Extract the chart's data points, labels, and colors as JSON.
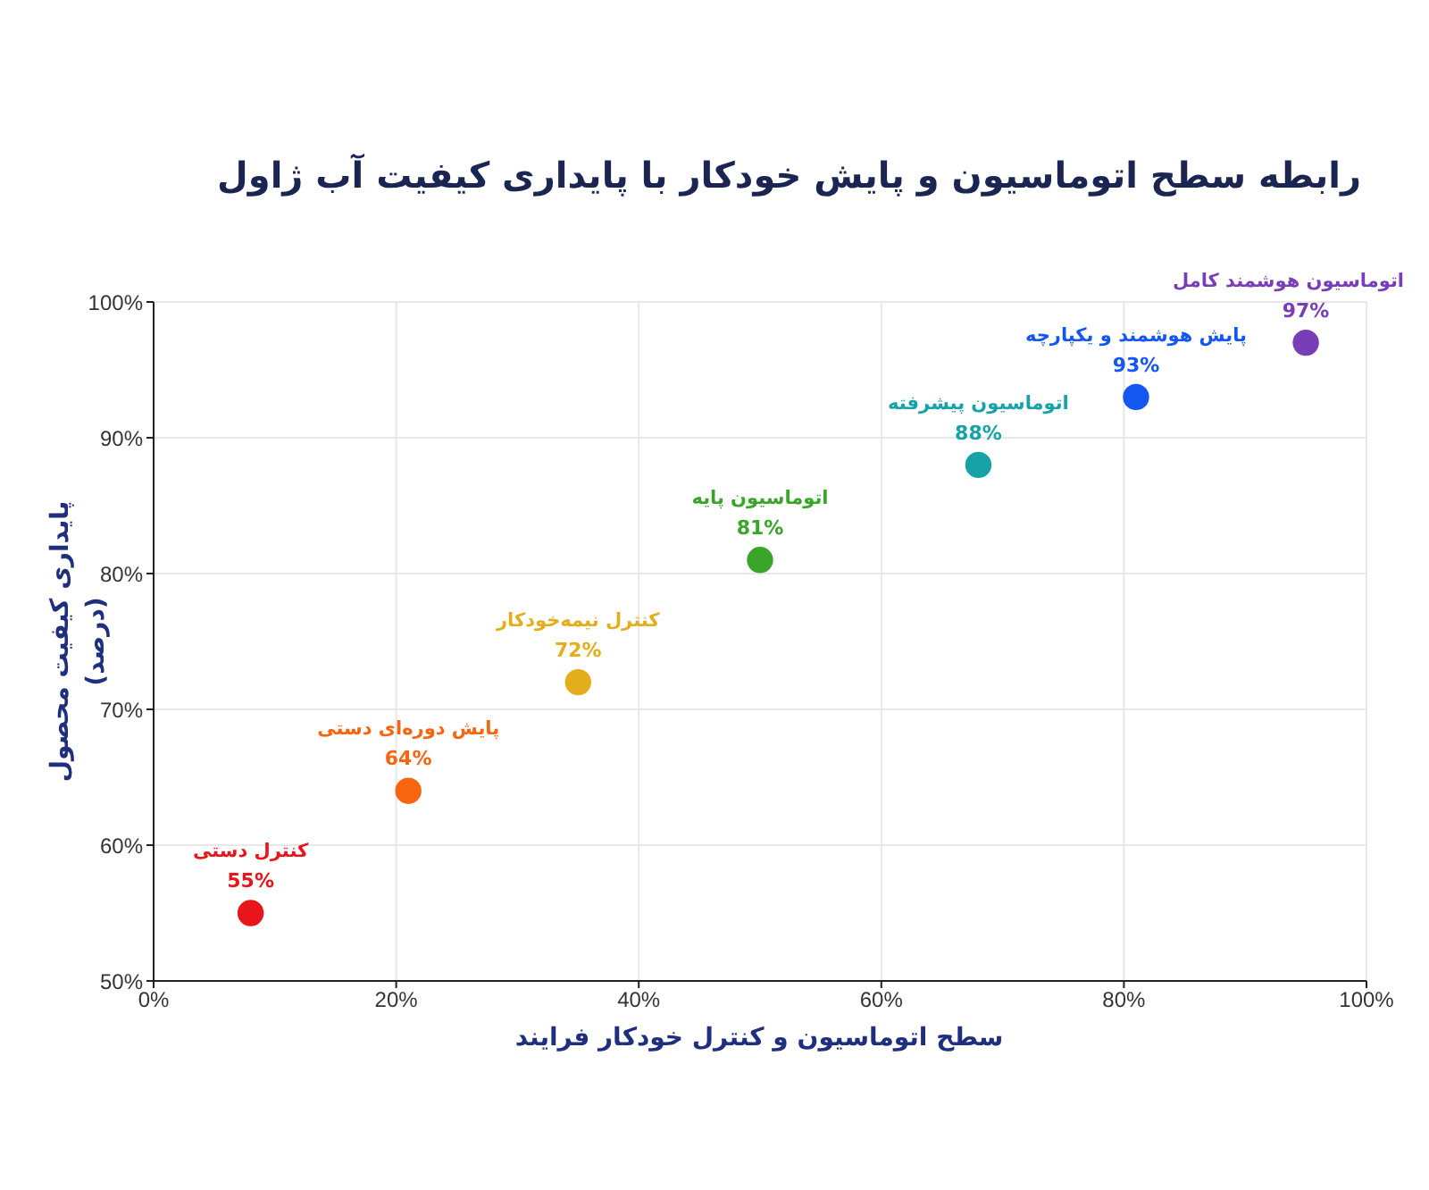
{
  "chart_data": {
    "type": "scatter",
    "title": "رابطه سطح اتوماسیون و پایش خودکار با پایداری کیفیت آب ژاول",
    "xlabel": "سطح اتوماسیون و کنترل خودکار فرایند",
    "ylabel": "پایداری کیفیت محصول\n(درصد)",
    "xlim": [
      0,
      100
    ],
    "xticks": [
      {
        "value": 0,
        "label": "0%"
      },
      {
        "value": 20,
        "label": "20%"
      },
      {
        "value": 40,
        "label": "40%"
      },
      {
        "value": 60,
        "label": "60%"
      },
      {
        "value": 80,
        "label": "80%"
      },
      {
        "value": 100,
        "label": "100%"
      }
    ],
    "ylim": [
      50,
      100
    ],
    "yticks": [
      {
        "value": 50,
        "label": "50%"
      },
      {
        "value": 60,
        "label": "60%"
      },
      {
        "value": 70,
        "label": "70%"
      },
      {
        "value": 80,
        "label": "80%"
      },
      {
        "value": 90,
        "label": "90%"
      },
      {
        "value": 100,
        "label": "100%"
      }
    ],
    "grid": true,
    "marker": "circle",
    "series": [
      {
        "name": "کنترل دستی",
        "color": "#e8161b",
        "x": [
          8
        ],
        "values": [
          55
        ],
        "value_labels": [
          "55%"
        ]
      },
      {
        "name": "پایش دوره‌ای دستی",
        "color": "#f7650f",
        "x": [
          21
        ],
        "values": [
          64
        ],
        "value_labels": [
          "64%"
        ]
      },
      {
        "name": "کنترل نیمه‌خودکار",
        "color": "#e3ad1c",
        "x": [
          35
        ],
        "values": [
          72
        ],
        "value_labels": [
          "72%"
        ]
      },
      {
        "name": "اتوماسیون پایه",
        "color": "#3aa52a",
        "x": [
          50
        ],
        "values": [
          81
        ],
        "value_labels": [
          "81%"
        ]
      },
      {
        "name": "اتوماسیون پیشرفته",
        "color": "#17a2a8",
        "x": [
          68
        ],
        "values": [
          88
        ],
        "value_labels": [
          "88%"
        ]
      },
      {
        "name": "پایش هوشمند و یکپارچه",
        "color": "#1457f0",
        "x": [
          81
        ],
        "values": [
          93
        ],
        "value_labels": [
          "93%"
        ]
      },
      {
        "name": "اتوماسیون هوشمند کامل",
        "color": "#7a3db8",
        "x": [
          95
        ],
        "values": [
          97
        ],
        "value_labels": [
          "97%"
        ]
      }
    ]
  }
}
